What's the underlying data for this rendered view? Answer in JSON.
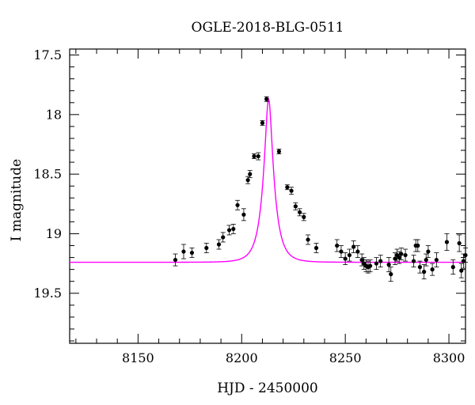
{
  "chart_data": {
    "type": "scatter",
    "title": "OGLE-2018-BLG-0511",
    "xlabel": "HJD - 2450000",
    "ylabel": "I magnitude",
    "xlim": [
      8117,
      8308
    ],
    "ylim": [
      19.92,
      17.45
    ],
    "y_inverted": true,
    "grid": false,
    "legend": "none",
    "x_major_ticks": [
      8150,
      8200,
      8250,
      8300
    ],
    "x_tick_labels": [
      "8150",
      "8200",
      "8250",
      "8300"
    ],
    "x_minor_step": 10,
    "y_major_ticks": [
      17.5,
      18,
      18.5,
      19,
      19.5
    ],
    "y_tick_labels": [
      "17.5",
      "18",
      "18.5",
      "19",
      "19.5"
    ],
    "y_minor_step": 0.1,
    "colors": {
      "points": "#000000",
      "model": "#ff00ff",
      "axes": "#000000"
    },
    "model": {
      "name": "",
      "type": "microlensing-fit",
      "baseline_mag": 19.24,
      "peak_mag": 17.87,
      "t0": 8213,
      "tE": 5.2
    },
    "series": [
      {
        "name": "",
        "type": "scatter-errorbar",
        "x": [
          8168,
          8172,
          8176,
          8183,
          8189,
          8191,
          8194,
          8196,
          8198,
          8201,
          8203,
          8204,
          8206,
          8208,
          8210,
          8212,
          8218,
          8222,
          8224,
          8226,
          8228,
          8230,
          8232,
          8236,
          8246,
          8248,
          8250,
          8252,
          8254,
          8256,
          8258,
          8259,
          8260,
          8261,
          8262,
          8265,
          8267,
          8271,
          8272,
          8274,
          8275,
          8276,
          8277,
          8279,
          8283,
          8284,
          8285,
          8286,
          8288,
          8289,
          8290,
          8292,
          8294,
          8299,
          8302,
          8305,
          8306,
          8307,
          8308
        ],
        "y": [
          19.22,
          19.15,
          19.16,
          19.12,
          19.09,
          19.03,
          18.97,
          18.96,
          18.76,
          18.84,
          18.55,
          18.5,
          18.35,
          18.35,
          18.07,
          17.87,
          18.31,
          18.61,
          18.64,
          18.77,
          18.82,
          18.86,
          19.05,
          19.12,
          19.1,
          19.15,
          19.21,
          19.18,
          19.11,
          19.15,
          19.22,
          19.25,
          19.27,
          19.28,
          19.27,
          19.25,
          19.23,
          19.26,
          19.34,
          19.21,
          19.18,
          19.2,
          19.17,
          19.18,
          19.23,
          19.1,
          19.1,
          19.28,
          19.32,
          19.22,
          19.15,
          19.3,
          19.22,
          19.07,
          19.28,
          19.08,
          19.31,
          19.23,
          19.18
        ],
        "err": [
          0.05,
          0.06,
          0.04,
          0.04,
          0.04,
          0.04,
          0.04,
          0.04,
          0.04,
          0.05,
          0.03,
          0.03,
          0.02,
          0.03,
          0.02,
          0.02,
          0.02,
          0.02,
          0.03,
          0.03,
          0.03,
          0.03,
          0.04,
          0.04,
          0.05,
          0.05,
          0.05,
          0.05,
          0.05,
          0.05,
          0.05,
          0.05,
          0.05,
          0.05,
          0.05,
          0.05,
          0.05,
          0.06,
          0.06,
          0.05,
          0.05,
          0.05,
          0.05,
          0.05,
          0.05,
          0.05,
          0.05,
          0.05,
          0.06,
          0.05,
          0.05,
          0.05,
          0.06,
          0.07,
          0.06,
          0.07,
          0.06,
          0.06,
          0.06
        ]
      }
    ]
  }
}
